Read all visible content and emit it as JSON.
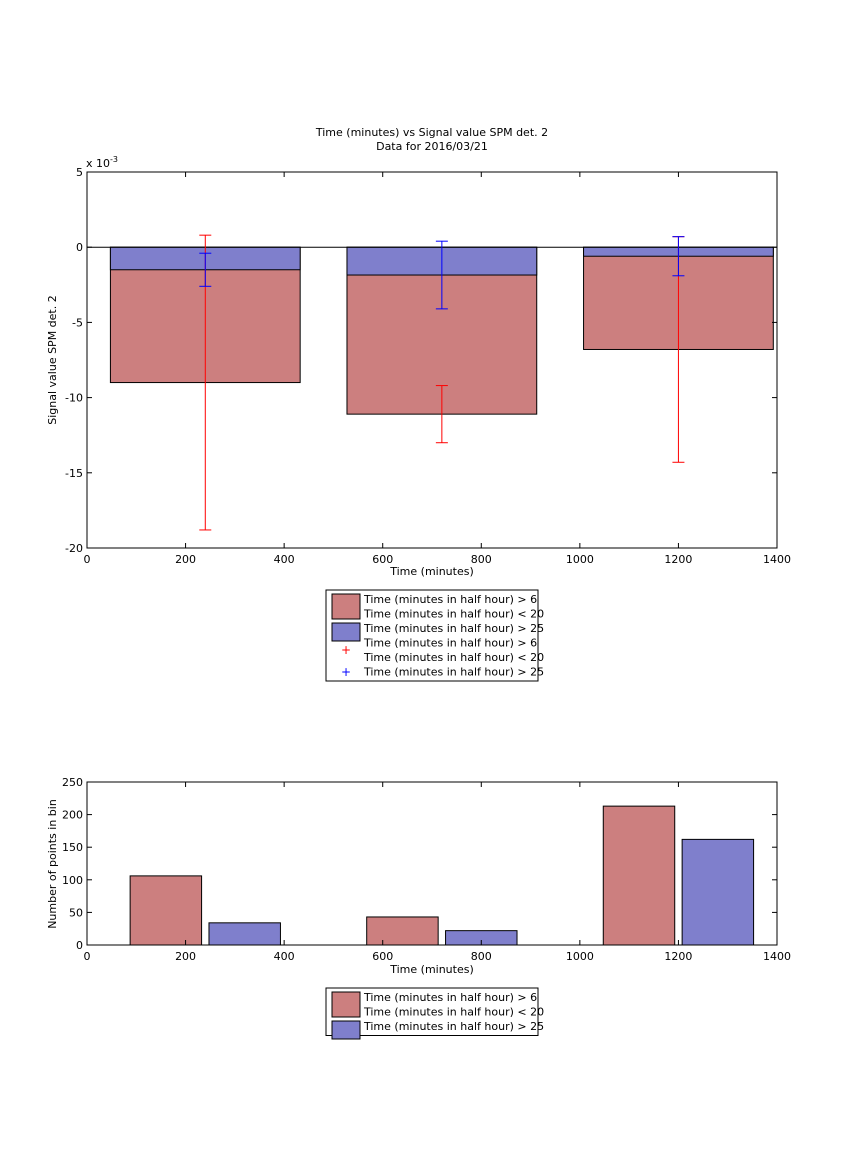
{
  "chart_data": [
    {
      "type": "bar",
      "title": "Time (minutes) vs Signal value SPM det. 2",
      "subtitle": "Data for 2016/03/21",
      "xlabel": "Time (minutes)",
      "ylabel": "Signal value SPM det. 2",
      "exponent_label": "x 10",
      "exponent_power": "-3",
      "xlim": [
        0,
        1400
      ],
      "ylim": [
        -20,
        5
      ],
      "xticks": [
        "0",
        "200",
        "400",
        "600",
        "800",
        "1000",
        "1200",
        "1400"
      ],
      "yticks": [
        "-20",
        "-15",
        "-10",
        "-5",
        "0",
        "5"
      ],
      "bar_width": 385,
      "x": [
        240,
        720,
        1200
      ],
      "series": [
        {
          "name": "Time (minutes in half hour) > 6 Time (minutes in half hour) < 20",
          "color": "#cc7f7f",
          "values": [
            -9.0,
            -11.1,
            -6.8
          ],
          "errors": [
            [
              -18.8,
              0.8
            ],
            [
              -13.0,
              -9.2
            ],
            [
              -14.3,
              0.7
            ]
          ],
          "error_color": "#ff0000"
        },
        {
          "name": "Time (minutes in half hour) > 25",
          "color": "#7f7fcc",
          "values": [
            -1.5,
            -1.85,
            -0.6
          ],
          "errors": [
            [
              -2.6,
              -0.4
            ],
            [
              -4.1,
              0.4
            ],
            [
              -1.9,
              0.7
            ]
          ],
          "error_color": "#0000ff"
        }
      ],
      "legend": {
        "placement": "below",
        "entries": [
          {
            "kind": "bar",
            "lines": [
              "Time (minutes in half hour) > 6",
              "Time (minutes in half hour) < 20"
            ],
            "color": "#cc7f7f"
          },
          {
            "kind": "bar",
            "lines": [
              "Time (minutes in half hour) > 25"
            ],
            "color": "#7f7fcc"
          },
          {
            "kind": "marker",
            "marker": "+",
            "lines": [
              "Time (minutes in half hour) > 6",
              "Time (minutes in half hour) < 20"
            ],
            "color": "#ff0000"
          },
          {
            "kind": "marker",
            "marker": "+",
            "lines": [
              "Time (minutes in half hour) > 25"
            ],
            "color": "#0000ff"
          }
        ]
      }
    },
    {
      "type": "bar",
      "xlabel": "Time (minutes)",
      "ylabel": "Number of points in bin",
      "xlim": [
        0,
        1400
      ],
      "ylim": [
        0,
        250
      ],
      "xticks": [
        "0",
        "200",
        "400",
        "600",
        "800",
        "1000",
        "1200",
        "1400"
      ],
      "yticks": [
        "0",
        "50",
        "100",
        "150",
        "200",
        "250"
      ],
      "bar_width": 145,
      "series": [
        {
          "name": "Time (minutes in half hour) > 6 Time (minutes in half hour) < 20",
          "color": "#cc7f7f",
          "x": [
            160,
            640,
            1120
          ],
          "values": [
            106,
            43,
            213
          ]
        },
        {
          "name": "Time (minutes in half hour) > 25",
          "color": "#7f7fcc",
          "x": [
            320,
            800,
            1280
          ],
          "values": [
            34,
            22,
            162
          ]
        }
      ],
      "legend": {
        "placement": "below",
        "entries": [
          {
            "kind": "bar",
            "lines": [
              "Time (minutes in half hour) > 6",
              "Time (minutes in half hour) < 20"
            ],
            "color": "#cc7f7f"
          },
          {
            "kind": "bar",
            "lines": [
              "Time (minutes in half hour) > 25"
            ],
            "color": "#7f7fcc"
          }
        ]
      }
    }
  ]
}
